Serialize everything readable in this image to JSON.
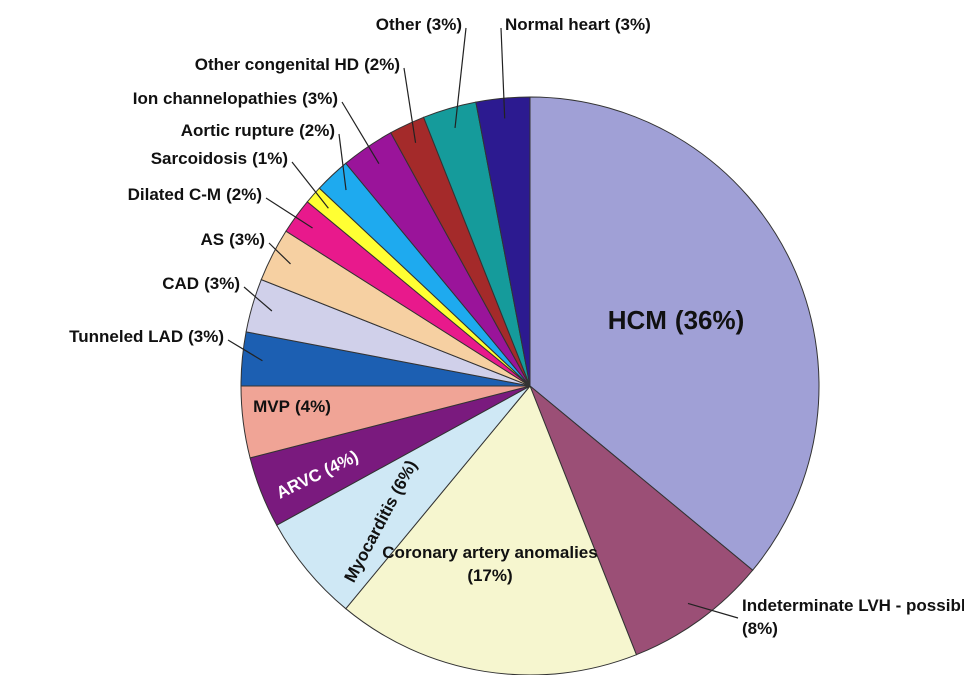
{
  "chart_data": {
    "type": "pie",
    "categories": [
      "HCM",
      "Indeterminate LVH - possible HCM",
      "Coronary artery anomalies",
      "Myocarditis",
      "ARVC",
      "MVP",
      "Tunneled LAD",
      "CAD",
      "AS",
      "Dilated C-M",
      "Sarcoidosis",
      "Aortic rupture",
      "Ion channelopathies",
      "Other congenital HD",
      "Other",
      "Normal heart"
    ],
    "values": [
      36,
      8,
      17,
      6,
      4,
      4,
      3,
      3,
      3,
      2,
      1,
      2,
      3,
      2,
      3,
      3
    ],
    "value_labels": [
      "(36%)",
      "(8%)",
      "(17%)",
      "(6%)",
      "(4%)",
      "(4%)",
      "(3%)",
      "(3%)",
      "(3%)",
      "(2%)",
      "(1%)",
      "(2%)",
      "(3%)",
      "(2%)",
      "(3%)",
      "(3%)"
    ],
    "colors": [
      "#a0a0d6",
      "#9b4f76",
      "#f6f6cf",
      "#cfe8f5",
      "#7a1a7e",
      "#f0a496",
      "#1c5fb2",
      "#d0d0ea",
      "#f6d0a2",
      "#e8198c",
      "#ffff33",
      "#1eaaef",
      "#9a149a",
      "#a42a2a",
      "#159b9b",
      "#2c1a90"
    ]
  }
}
